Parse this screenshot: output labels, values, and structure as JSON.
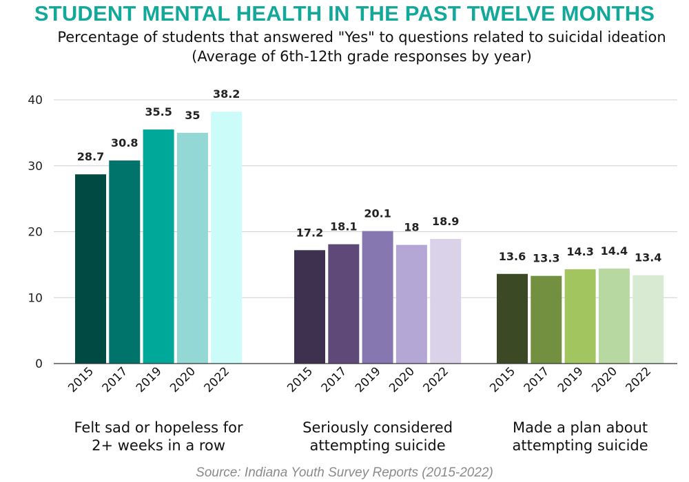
{
  "title": "STUDENT MENTAL HEALTH IN THE PAST TWELVE MONTHS",
  "subtitle": "Percentage of students that answered \"Yes\" to questions related to suicidal ideation (Average of 6th-12th grade responses by year)",
  "source": "Source: Indiana Youth Survey Reports (2015-2022)",
  "chart_data": {
    "type": "bar",
    "grid": true,
    "ylim": [
      0,
      40
    ],
    "yticks": [
      "0",
      "10",
      "20",
      "30",
      "40"
    ],
    "years": [
      "2015",
      "2017",
      "2019",
      "2020",
      "2022"
    ],
    "groups": [
      {
        "name_lines": [
          "Felt sad or hopeless for",
          "2+ weeks in a row"
        ],
        "values": [
          28.7,
          30.8,
          35.5,
          35,
          38.2
        ],
        "labels": [
          "28.7",
          "30.8",
          "35.5",
          "35",
          "38.2"
        ],
        "colors": [
          "#004a44",
          "#00736a",
          "#00a89a",
          "#93d8d4",
          "#ccfcfa"
        ]
      },
      {
        "name_lines": [
          "Seriously considered",
          "attempting suicide"
        ],
        "values": [
          17.2,
          18.1,
          20.1,
          18,
          18.9
        ],
        "labels": [
          "17.2",
          "18.1",
          "20.1",
          "18",
          "18.9"
        ],
        "colors": [
          "#3e3150",
          "#5e4979",
          "#8677b0",
          "#b4a7d6",
          "#d9d2e9"
        ]
      },
      {
        "name_lines": [
          "Made a plan about",
          "attempting suicide"
        ],
        "values": [
          13.6,
          13.3,
          14.3,
          14.4,
          13.4
        ],
        "labels": [
          "13.6",
          "13.3",
          "14.3",
          "14.4",
          "13.4"
        ],
        "colors": [
          "#3b4a25",
          "#72903f",
          "#a3c55f",
          "#b7d8a1",
          "#d9ead3"
        ]
      }
    ]
  }
}
